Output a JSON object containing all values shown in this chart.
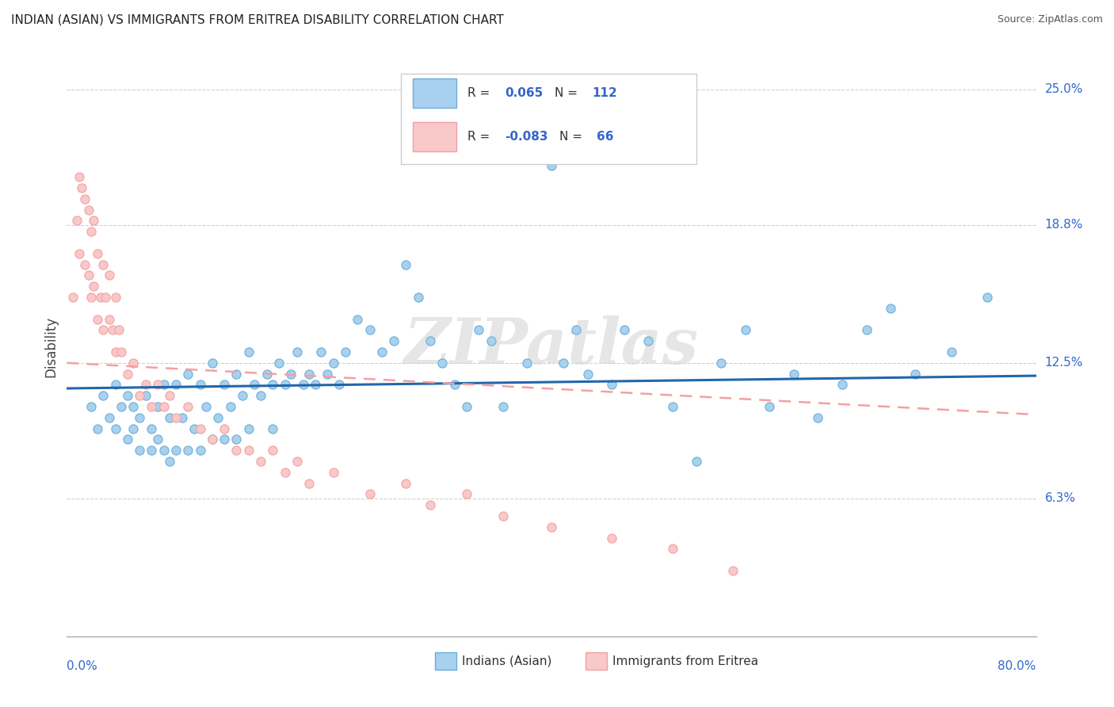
{
  "title": "INDIAN (ASIAN) VS IMMIGRANTS FROM ERITREA DISABILITY CORRELATION CHART",
  "source": "Source: ZipAtlas.com",
  "watermark": "ZIPatlas",
  "ylabel": "Disability",
  "y_tick_labels": [
    "6.3%",
    "12.5%",
    "18.8%",
    "25.0%"
  ],
  "y_tick_values": [
    0.063,
    0.125,
    0.188,
    0.25
  ],
  "xmin": 0.0,
  "xmax": 0.8,
  "ymin": 0.0,
  "ymax": 0.265,
  "blue_scatter_color": "#a8d0ef",
  "blue_edge_color": "#6baed6",
  "pink_scatter_color": "#f9c8c8",
  "pink_edge_color": "#f4a0a0",
  "trend_blue_color": "#2166ac",
  "trend_pink_color": "#f4a0a0",
  "label_color": "#3366cc",
  "r_blue": 0.065,
  "n_blue": 112,
  "r_pink": -0.083,
  "n_pink": 66,
  "background_color": "#ffffff",
  "grid_color": "#d0d0d0",
  "blue_scatter_x": [
    0.02,
    0.025,
    0.03,
    0.035,
    0.04,
    0.04,
    0.045,
    0.05,
    0.05,
    0.055,
    0.055,
    0.06,
    0.06,
    0.065,
    0.07,
    0.07,
    0.075,
    0.075,
    0.08,
    0.08,
    0.085,
    0.085,
    0.09,
    0.09,
    0.095,
    0.1,
    0.1,
    0.105,
    0.11,
    0.11,
    0.115,
    0.12,
    0.12,
    0.125,
    0.13,
    0.13,
    0.135,
    0.14,
    0.14,
    0.145,
    0.15,
    0.15,
    0.155,
    0.16,
    0.165,
    0.17,
    0.17,
    0.175,
    0.18,
    0.185,
    0.19,
    0.195,
    0.2,
    0.205,
    0.21,
    0.215,
    0.22,
    0.225,
    0.23,
    0.24,
    0.25,
    0.26,
    0.27,
    0.28,
    0.29,
    0.3,
    0.31,
    0.32,
    0.33,
    0.34,
    0.35,
    0.36,
    0.38,
    0.4,
    0.41,
    0.42,
    0.43,
    0.45,
    0.46,
    0.48,
    0.5,
    0.52,
    0.54,
    0.56,
    0.58,
    0.6,
    0.62,
    0.64,
    0.66,
    0.68,
    0.7,
    0.73,
    0.76
  ],
  "blue_scatter_y": [
    0.105,
    0.095,
    0.11,
    0.1,
    0.115,
    0.095,
    0.105,
    0.11,
    0.09,
    0.105,
    0.095,
    0.1,
    0.085,
    0.11,
    0.095,
    0.085,
    0.105,
    0.09,
    0.115,
    0.085,
    0.1,
    0.08,
    0.115,
    0.085,
    0.1,
    0.12,
    0.085,
    0.095,
    0.115,
    0.085,
    0.105,
    0.125,
    0.09,
    0.1,
    0.115,
    0.09,
    0.105,
    0.12,
    0.09,
    0.11,
    0.13,
    0.095,
    0.115,
    0.11,
    0.12,
    0.115,
    0.095,
    0.125,
    0.115,
    0.12,
    0.13,
    0.115,
    0.12,
    0.115,
    0.13,
    0.12,
    0.125,
    0.115,
    0.13,
    0.145,
    0.14,
    0.13,
    0.135,
    0.17,
    0.155,
    0.135,
    0.125,
    0.115,
    0.105,
    0.14,
    0.135,
    0.105,
    0.125,
    0.215,
    0.125,
    0.14,
    0.12,
    0.115,
    0.14,
    0.135,
    0.105,
    0.08,
    0.125,
    0.14,
    0.105,
    0.12,
    0.1,
    0.115,
    0.14,
    0.15,
    0.12,
    0.13,
    0.155
  ],
  "pink_scatter_x": [
    0.005,
    0.008,
    0.01,
    0.01,
    0.012,
    0.015,
    0.015,
    0.018,
    0.018,
    0.02,
    0.02,
    0.022,
    0.022,
    0.025,
    0.025,
    0.028,
    0.03,
    0.03,
    0.032,
    0.035,
    0.035,
    0.038,
    0.04,
    0.04,
    0.043,
    0.045,
    0.05,
    0.055,
    0.06,
    0.065,
    0.07,
    0.075,
    0.08,
    0.085,
    0.09,
    0.1,
    0.11,
    0.12,
    0.13,
    0.14,
    0.15,
    0.16,
    0.17,
    0.18,
    0.19,
    0.2,
    0.22,
    0.25,
    0.28,
    0.3,
    0.33,
    0.36,
    0.4,
    0.45,
    0.5,
    0.55
  ],
  "pink_scatter_y": [
    0.155,
    0.19,
    0.21,
    0.175,
    0.205,
    0.17,
    0.2,
    0.165,
    0.195,
    0.155,
    0.185,
    0.16,
    0.19,
    0.145,
    0.175,
    0.155,
    0.14,
    0.17,
    0.155,
    0.145,
    0.165,
    0.14,
    0.13,
    0.155,
    0.14,
    0.13,
    0.12,
    0.125,
    0.11,
    0.115,
    0.105,
    0.115,
    0.105,
    0.11,
    0.1,
    0.105,
    0.095,
    0.09,
    0.095,
    0.085,
    0.085,
    0.08,
    0.085,
    0.075,
    0.08,
    0.07,
    0.075,
    0.065,
    0.07,
    0.06,
    0.065,
    0.055,
    0.05,
    0.045,
    0.04,
    0.03
  ]
}
